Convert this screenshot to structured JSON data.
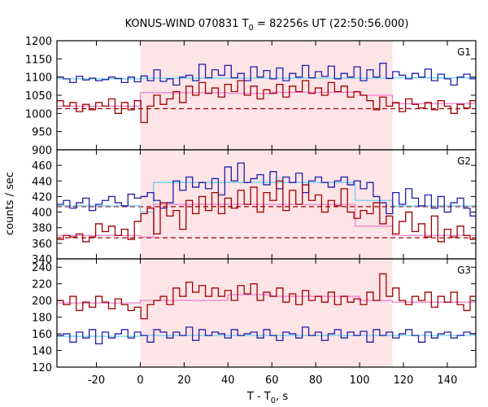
{
  "chart_data": {
    "type": "line",
    "title": "KONUS-WIND 070831 T",
    "title_sub": "0",
    "title_rest": " = 82256s UT (22:50:56.000)",
    "xlabel": "T - T",
    "xlabel_sub": "0",
    "xlabel_rest": ", s",
    "ylabel": "counts / sec",
    "xlim": [
      -38,
      153
    ],
    "xticks": [
      -20,
      0,
      20,
      40,
      60,
      80,
      100,
      120,
      140
    ],
    "shaded_interval": [
      0,
      115
    ],
    "bin_width": 2.944,
    "x_start": -38,
    "colors": {
      "blue": "#1f1fa8",
      "red": "#a00000",
      "light_blue": "#70d0f0",
      "pink": "#f080d0",
      "dashed": "#a00000",
      "shade": "#fde4e6"
    },
    "panels": [
      {
        "label": "G1",
        "ylim": [
          900,
          1200
        ],
        "yticks": [
          900,
          950,
          1000,
          1050,
          1100,
          1150,
          1200
        ],
        "series": [
          {
            "color_key": "blue",
            "values": [
              1100,
              1095,
              1085,
              1102,
              1092,
              1097,
              1090,
              1093,
              1100,
              1096,
              1085,
              1100,
              1087,
              1103,
              1090,
              1120,
              1088,
              1095,
              1078,
              1100,
              1105,
              1090,
              1135,
              1098,
              1120,
              1105,
              1132,
              1098,
              1110,
              1090,
              1128,
              1100,
              1118,
              1095,
              1125,
              1090,
              1110,
              1100,
              1132,
              1098,
              1115,
              1102,
              1130,
              1095,
              1110,
              1100,
              1128,
              1090,
              1120,
              1100,
              1138,
              1096,
              1115,
              1105,
              1095,
              1110,
              1100,
              1122,
              1090,
              1108,
              1095,
              1078,
              1100,
              1108,
              1095,
              1120,
              1085,
              1105,
              1090,
              1112
            ]
          },
          {
            "color_key": "red",
            "values": [
              1035,
              1020,
              1030,
              1005,
              1025,
              1010,
              1030,
              1020,
              1040,
              1000,
              1030,
              1010,
              1035,
              975,
              1020,
              1050,
              1025,
              1040,
              1060,
              1030,
              1075,
              1050,
              1085,
              1055,
              1070,
              1045,
              1080,
              1060,
              1090,
              1050,
              1075,
              1040,
              1065,
              1055,
              1080,
              1045,
              1075,
              1060,
              1090,
              1055,
              1070,
              1050,
              1085,
              1060,
              1075,
              1045,
              1060,
              1050,
              1035,
              1010,
              1045,
              1020,
              1030,
              1005,
              1040,
              1025,
              1015,
              1030,
              1010,
              1035,
              1020,
              1000,
              1025,
              1015,
              1035,
              1020,
              1010,
              1025,
              1030,
              1015
            ]
          }
        ],
        "steps": [
          {
            "color_key": "light_blue",
            "x": [
              -38,
              0,
              115,
              153
            ],
            "values": [
              1095,
              1097,
              1098,
              1096
            ]
          },
          {
            "color_key": "pink",
            "x": [
              -38,
              0,
              40,
              60,
              100,
              115,
              153
            ],
            "values": [
              1020,
              1057,
              1055,
              1058,
              1050,
              1027,
              1022
            ]
          }
        ],
        "dashed": 1013
      },
      {
        "label": "G2",
        "ylim": [
          340,
          480
        ],
        "yticks": [
          340,
          360,
          380,
          400,
          420,
          440,
          460
        ],
        "series": [
          {
            "color_key": "blue",
            "values": [
              410,
              415,
              405,
              412,
              418,
              402,
              410,
              415,
              420,
              412,
              408,
              423,
              418,
              420,
              425,
              415,
              405,
              412,
              440,
              428,
              445,
              432,
              438,
              430,
              443,
              422,
              458,
              440,
              463,
              438,
              443,
              448,
              435,
              452,
              430,
              445,
              438,
              450,
              425,
              440,
              445,
              438,
              432,
              440,
              445,
              435,
              440,
              430,
              438,
              420,
              412,
              398,
              425,
              410,
              430,
              418,
              408,
              422,
              405,
              420,
              400,
              412,
              418,
              405,
              395,
              410,
              402,
              415,
              405,
              400
            ]
          },
          {
            "color_key": "red",
            "values": [
              365,
              370,
              368,
              372,
              362,
              368,
              385,
              375,
              382,
              370,
              378,
              365,
              388,
              398,
              405,
              372,
              412,
              395,
              402,
              378,
              415,
              398,
              420,
              402,
              425,
              398,
              418,
              405,
              428,
              410,
              432,
              400,
              425,
              415,
              440,
              402,
              428,
              410,
              435,
              415,
              422,
              400,
              415,
              408,
              430,
              400,
              392,
              402,
              398,
              412,
              385,
              395,
              372,
              388,
              400,
              375,
              385,
              368,
              395,
              362,
              378,
              368,
              382,
              370,
              365,
              380,
              372,
              385,
              365,
              378
            ]
          }
        ],
        "steps": [
          {
            "color_key": "light_blue",
            "x": [
              -38,
              0,
              6,
              98,
              115,
              153
            ],
            "values": [
              408,
              400,
              438,
              415,
              408,
              408
            ]
          },
          {
            "color_key": "pink",
            "x": [
              -38,
              0,
              6,
              98,
              115,
              153
            ],
            "values": [
              370,
              368,
              410,
              382,
              370,
              370
            ]
          }
        ],
        "dashed": 407,
        "dashed2": 367
      },
      {
        "label": "G3",
        "ylim": [
          120,
          250
        ],
        "yticks": [
          120,
          140,
          160,
          180,
          200,
          220,
          240
        ],
        "series": [
          {
            "color_key": "red",
            "values": [
              200,
              195,
              205,
              188,
              198,
              192,
              205,
              198,
              190,
              202,
              195,
              188,
              192,
              178,
              195,
              200,
              205,
              195,
              215,
              205,
              222,
              210,
              218,
              205,
              215,
              205,
              212,
              200,
              218,
              208,
              220,
              200,
              210,
              205,
              215,
              198,
              208,
              195,
              212,
              200,
              205,
              198,
              210,
              195,
              205,
              198,
              202,
              195,
              210,
              200,
              232,
              205,
              215,
              200,
              195,
              205,
              200,
              210,
              192,
              205,
              198,
              210,
              195,
              188,
              205,
              200,
              192,
              208,
              195,
              200
            ]
          },
          {
            "color_key": "blue",
            "values": [
              158,
              160,
              150,
              162,
              155,
              165,
              148,
              162,
              155,
              160,
              165,
              155,
              162,
              158,
              150,
              165,
              162,
              155,
              162,
              158,
              168,
              152,
              165,
              158,
              162,
              160,
              155,
              165,
              158,
              160,
              162,
              155,
              165,
              158,
              152,
              162,
              160,
              155,
              168,
              158,
              162,
              152,
              160,
              165,
              155,
              162,
              158,
              163,
              150,
              165,
              158,
              162,
              155,
              160,
              165,
              158,
              150,
              162,
              155,
              160,
              162,
              155,
              158,
              162,
              160,
              155,
              158,
              152,
              165,
              160
            ]
          }
        ],
        "steps": [
          {
            "color_key": "pink",
            "x": [
              -38,
              0,
              40,
              60,
              100,
              115,
              153
            ],
            "values": [
              197,
              200,
              207,
              205,
              200,
              198,
              197
            ]
          },
          {
            "color_key": "light_blue",
            "x": [
              -38,
              0,
              115,
              153
            ],
            "values": [
              157,
              158,
              158,
              157
            ]
          }
        ]
      }
    ]
  }
}
